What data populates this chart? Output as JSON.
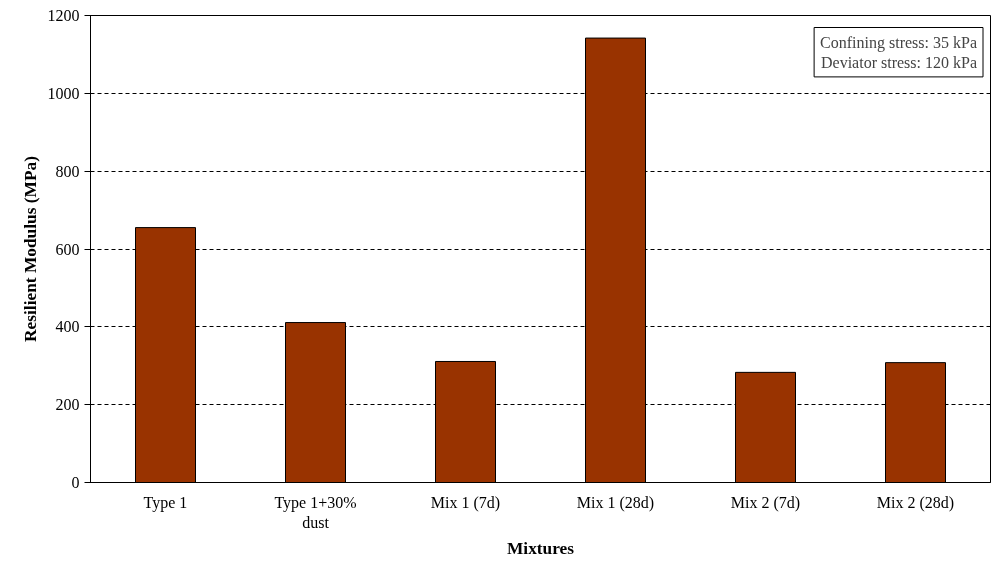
{
  "chart_data": {
    "type": "bar",
    "xlabel": "Mixtures",
    "ylabel": "Resilient Modulus (MPa)",
    "categories": [
      "Type 1",
      "Type 1+30% dust",
      "Mix 1 (7d)",
      "Mix 1 (28d)",
      "Mix 2 (7d)",
      "Mix 2 (28d)"
    ],
    "values": [
      655,
      411,
      311,
      1142,
      283,
      308
    ],
    "color": "#993300",
    "ylim": [
      0,
      1200
    ],
    "yticks": [
      0,
      200,
      400,
      600,
      800,
      1000,
      1200
    ],
    "grid": "y",
    "annotations": [
      "Confining stress: 35 kPa",
      "Deviator stress: 120 kPa"
    ]
  }
}
